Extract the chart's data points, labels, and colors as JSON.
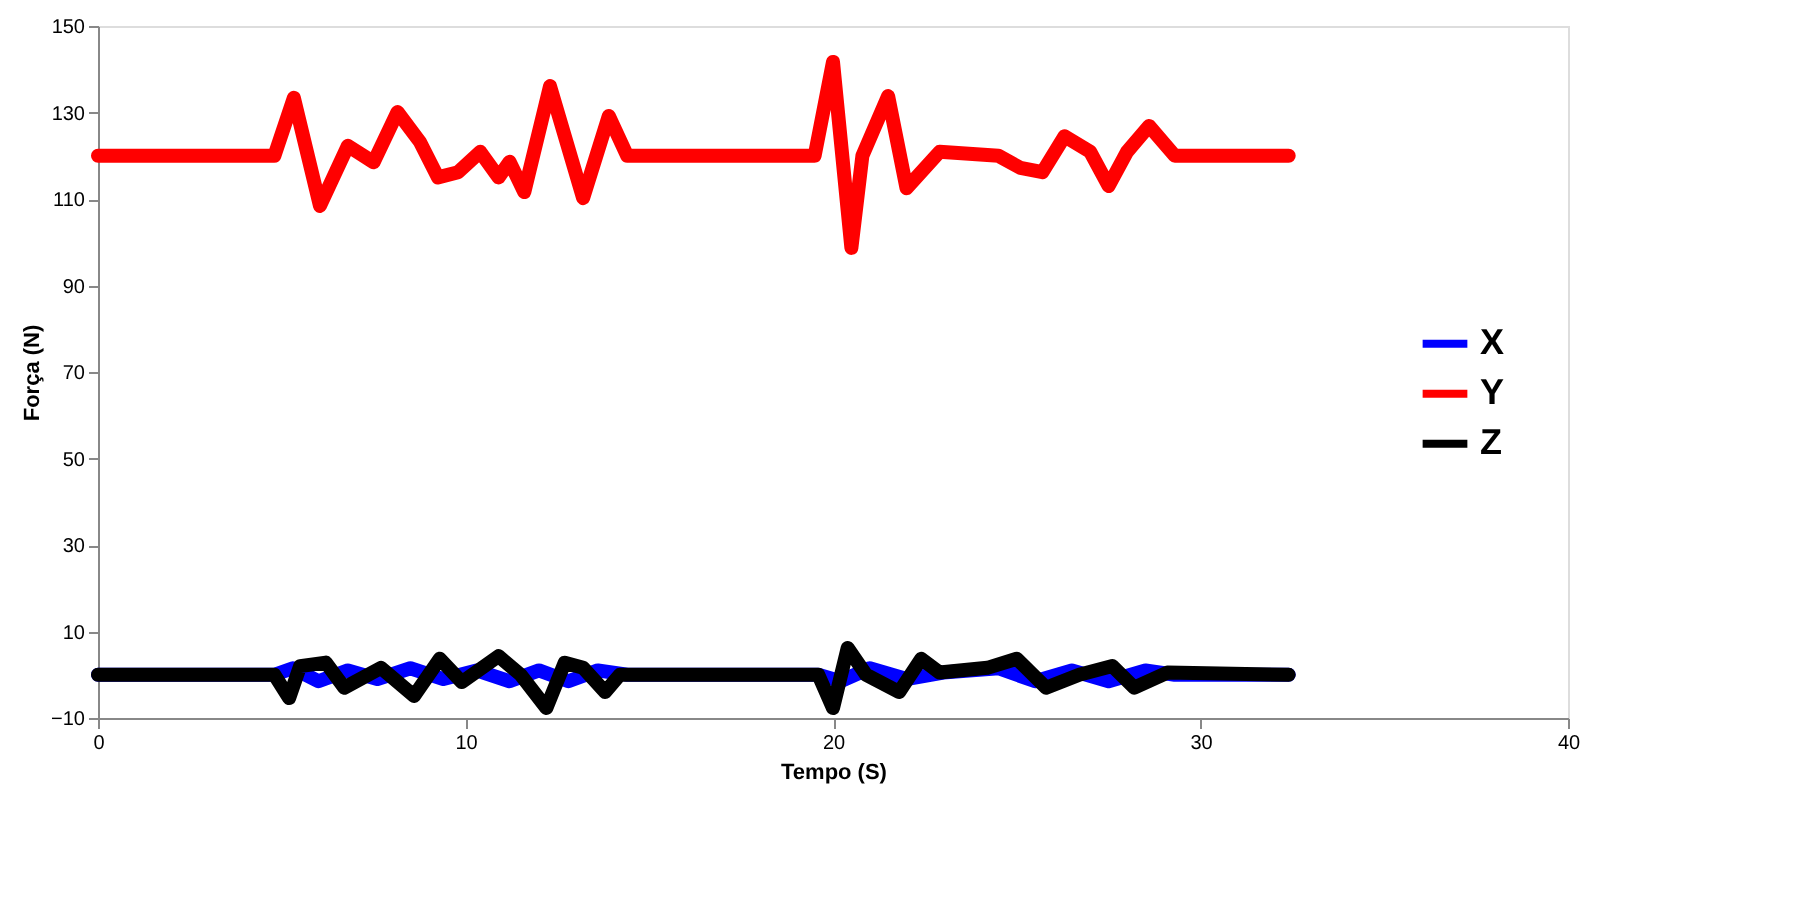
{
  "chart_data": {
    "type": "line",
    "xlabel": "Tempo (S)",
    "ylabel": "Força (N)",
    "xlim": [
      0,
      40
    ],
    "xticks": [
      0,
      10,
      20,
      30,
      40
    ],
    "ylim": [
      -10,
      150
    ],
    "yticks": [
      -10,
      10,
      30,
      50,
      70,
      90,
      110,
      130,
      150
    ],
    "grid": false,
    "legend": "right",
    "marker": "none",
    "line_style": "solid",
    "series": [
      {
        "name": "X",
        "color": "#0000ff",
        "x": [
          0,
          4.8,
          5.3,
          6.0,
          6.8,
          7.6,
          8.5,
          9.4,
          10.3,
          11.2,
          12.0,
          12.8,
          13.6,
          14.4,
          19.6,
          20.2,
          21.0,
          22.0,
          23.0,
          24.5,
          25.5,
          26.5,
          27.5,
          28.5,
          29.3,
          32.4
        ],
        "values": [
          0,
          0,
          1.5,
          -1.5,
          1,
          -1,
          1.5,
          -1,
          1,
          -1.5,
          1,
          -1.5,
          1,
          0,
          0,
          -1.5,
          1.5,
          -1,
          0.5,
          1.5,
          -1.5,
          1,
          -1.5,
          1,
          0,
          0
        ]
      },
      {
        "name": "Y",
        "color": "#ff0000",
        "x": [
          0,
          4.8,
          5.33,
          6.04,
          6.8,
          7.5,
          8.15,
          8.76,
          9.25,
          9.8,
          10.4,
          10.9,
          11.2,
          11.6,
          12.3,
          13.2,
          13.9,
          14.4,
          19.5,
          20.0,
          20.5,
          20.8,
          21.5,
          22.0,
          22.9,
          24.5,
          25.1,
          25.7,
          26.3,
          27.0,
          27.5,
          28.0,
          28.6,
          29.3,
          32.4
        ],
        "values": [
          120,
          120,
          133.4,
          108.4,
          122.3,
          118.5,
          130.1,
          123.2,
          115,
          116.2,
          120.9,
          115,
          118.6,
          111.6,
          136.1,
          110.2,
          129.2,
          120,
          120,
          141.7,
          98.7,
          120,
          133.8,
          112.5,
          120.9,
          120,
          117.2,
          116.2,
          124.5,
          120.9,
          113,
          120.9,
          126.9,
          120,
          120
        ]
      },
      {
        "name": "Z",
        "color": "#000000",
        "x": [
          0,
          4.8,
          5.2,
          5.5,
          6.2,
          6.7,
          7.7,
          8.6,
          9.3,
          9.9,
          10.9,
          11.5,
          12.2,
          12.7,
          13.2,
          13.8,
          14.2,
          19.6,
          20.0,
          20.4,
          20.9,
          21.8,
          22.4,
          22.9,
          24.2,
          25.0,
          25.8,
          26.7,
          27.6,
          28.2,
          29.1,
          32.4
        ],
        "values": [
          0,
          0,
          -5.4,
          2,
          2.8,
          -3,
          1.6,
          -4.9,
          3.7,
          -1.7,
          4.3,
          0,
          -7.7,
          2.8,
          1.6,
          -4,
          0,
          0,
          -7.7,
          6.2,
          0,
          -4,
          3.7,
          0.5,
          1.6,
          3.7,
          -3,
          0,
          2,
          -3,
          0.5,
          0
        ]
      }
    ]
  }
}
